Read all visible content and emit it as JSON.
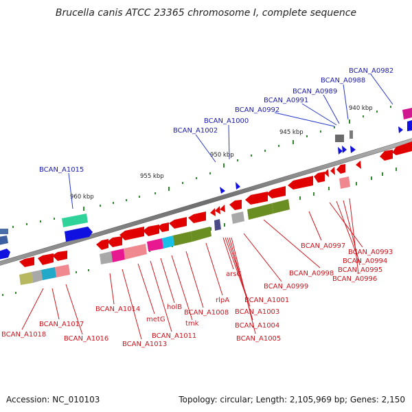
{
  "title": "Brucella canis ATCC 23365 chromosome I, complete sequence",
  "footer": {
    "accession": "Accession: NC_010103",
    "topology": "Topology: circular; Length: 2,105,969 bp; Genes: 2,150"
  },
  "ticks": [
    "960 kbp",
    "955 kbp",
    "950 kbp",
    "945 kbp",
    "940 kbp"
  ],
  "blue_labels": [
    "BCAN_A1015",
    "BCAN_A1002",
    "BCAN_A1000",
    "BCAN_A0992",
    "BCAN_A0991",
    "BCAN_A0989",
    "BCAN_A0988",
    "BCAN_A0982"
  ],
  "red_labels": [
    "BCAN_A1018",
    "BCAN_A1017",
    "BCAN_A1016",
    "BCAN_A1014",
    "BCAN_A1013",
    "metG",
    "BCAN_A1011",
    "holB",
    "tmk",
    "BCAN_A1008",
    "rlpA",
    "arsC",
    "BCAN_A1001",
    "BCAN_A1003",
    "BCAN_A1004",
    "BCAN_A1005",
    "BCAN_A0999",
    "BCAN_A0998",
    "BCAN_A0997",
    "BCAN_A0993",
    "BCAN_A0994",
    "BCAN_A0995",
    "BCAN_A0996"
  ]
}
